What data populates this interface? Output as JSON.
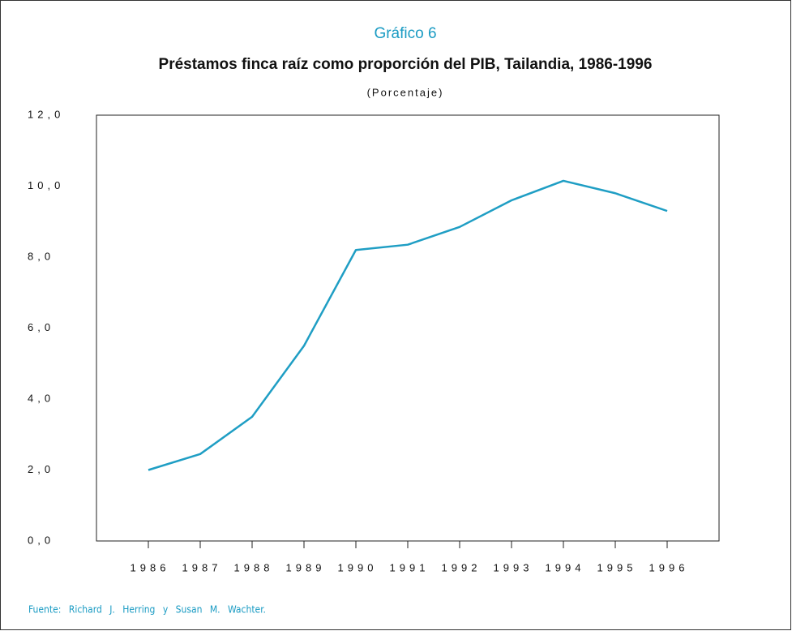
{
  "chart_data": {
    "type": "line",
    "label": "Gráfico 6",
    "title": "Préstamos finca raíz como proporción del PIB, Tailandia, 1986-1996",
    "subtitle": "(Porcentaje)",
    "source": "Fuente: Richard J. Herring y Susan M. Wachter.",
    "x": [
      1986,
      1987,
      1988,
      1989,
      1990,
      1991,
      1992,
      1993,
      1994,
      1995,
      1996
    ],
    "series": [
      {
        "color": "#1f9ec4",
        "values": [
          2.0,
          2.45,
          3.5,
          5.5,
          8.2,
          8.35,
          8.85,
          9.6,
          10.15,
          9.8,
          9.3
        ]
      }
    ],
    "xlim": [
      1985,
      1997
    ],
    "xticks": [
      1986,
      1987,
      1988,
      1989,
      1990,
      1991,
      1992,
      1993,
      1994,
      1995,
      1996
    ],
    "ylim": [
      0,
      12
    ],
    "yticks": [
      {
        "value": 0,
        "label": "0,0"
      },
      {
        "value": 2,
        "label": "2,0"
      },
      {
        "value": 4,
        "label": "4,0"
      },
      {
        "value": 6,
        "label": "6,0"
      },
      {
        "value": 8,
        "label": "8,0"
      },
      {
        "value": 10,
        "label": "10,0"
      },
      {
        "value": 12,
        "label": "12,0"
      }
    ],
    "grid": false
  }
}
